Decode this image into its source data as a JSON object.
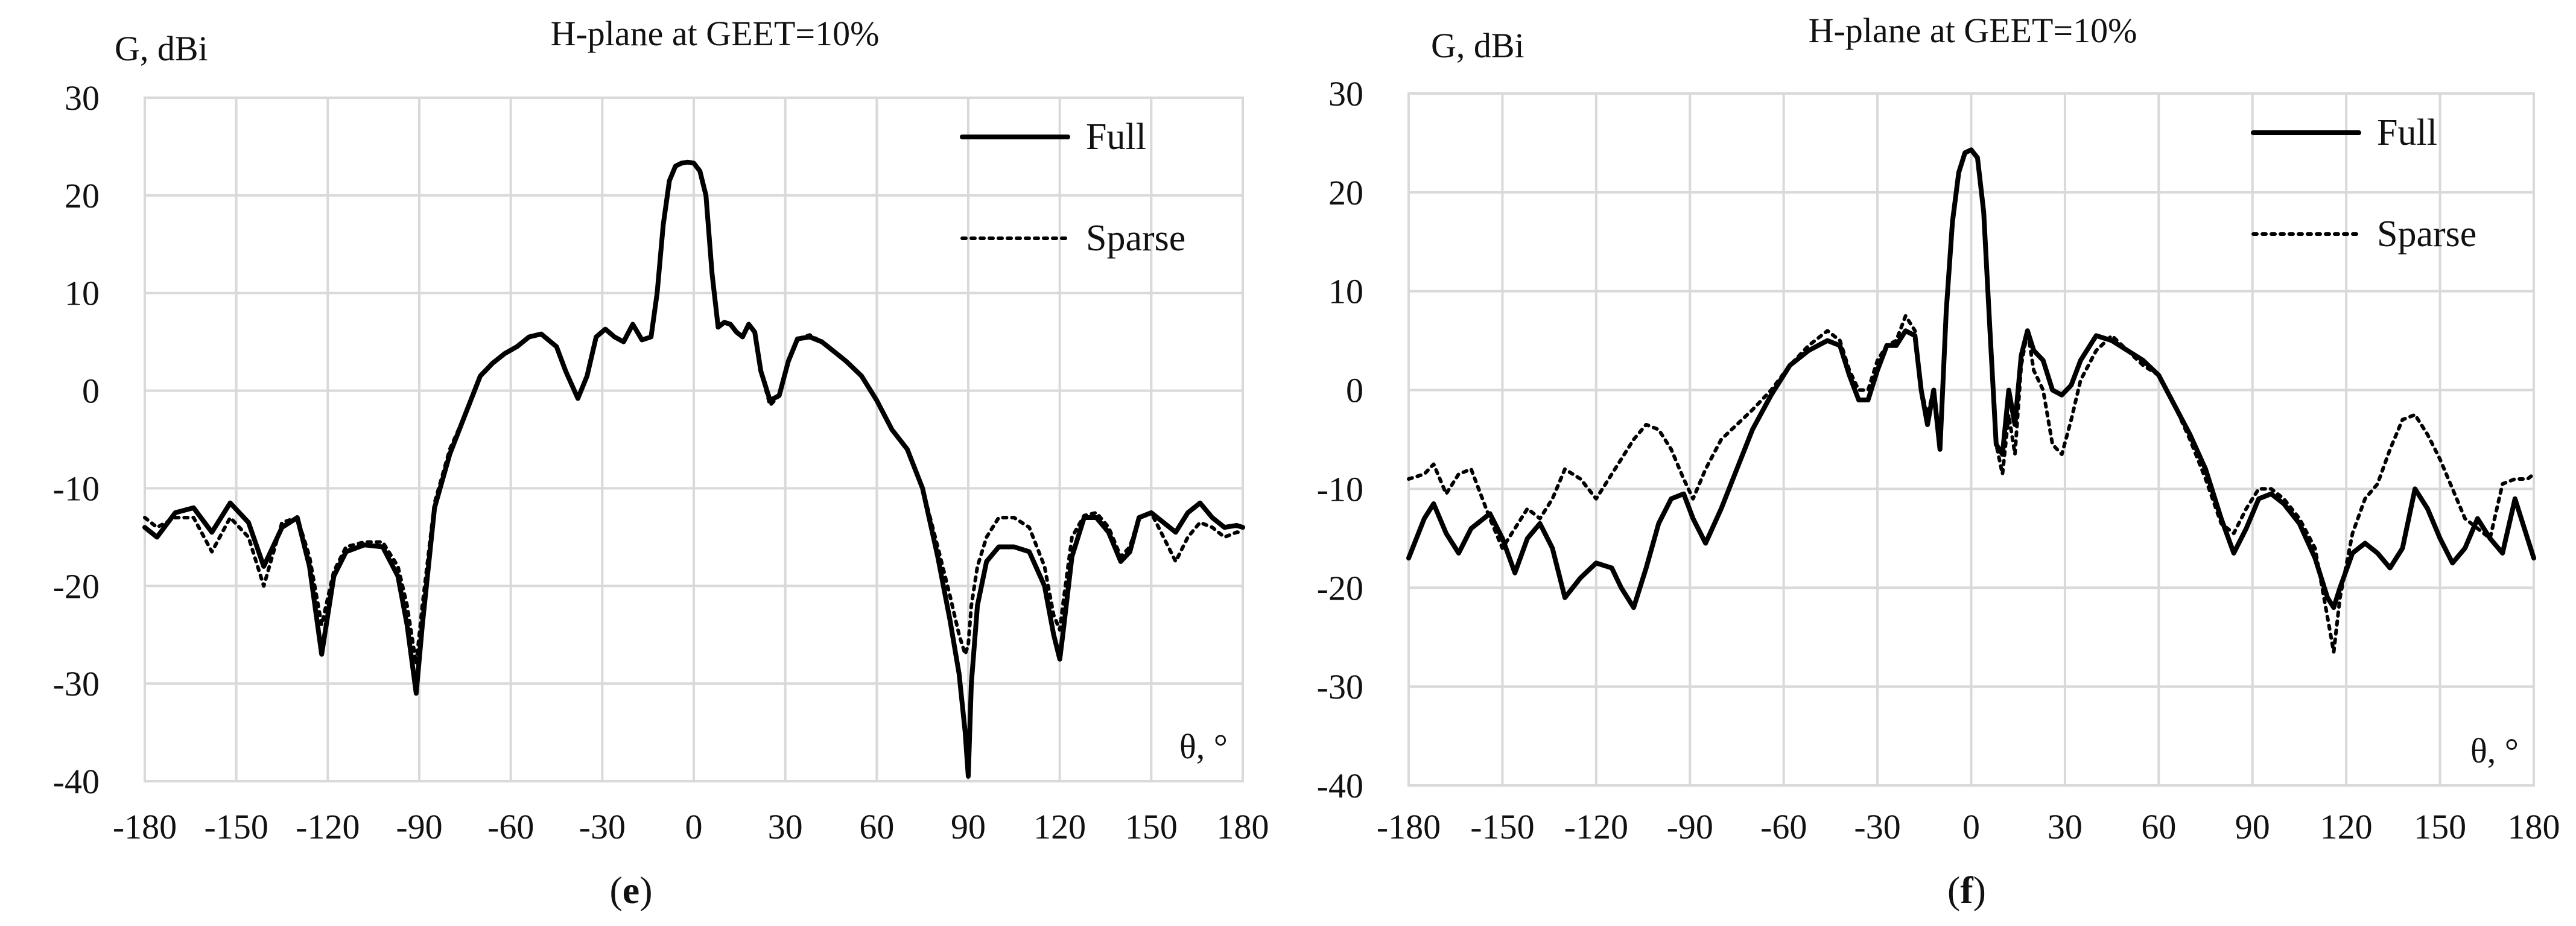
{
  "chart_data": [
    {
      "type": "line",
      "panel": "(e)",
      "caption_letter": "e",
      "title": "H-plane at GEET=10%",
      "ylabel": "G, dBi",
      "xlabel": "θ, °",
      "xlim": [
        -180,
        180
      ],
      "ylim": [
        -40,
        30
      ],
      "xticks": [
        "-180",
        "-150",
        "-120",
        "-90",
        "-60",
        "-30",
        "0",
        "30",
        "60",
        "90",
        "120",
        "150",
        "180"
      ],
      "yticks": [
        "30",
        "20",
        "10",
        "0",
        "-10",
        "-20",
        "-30",
        "-40"
      ],
      "grid": true,
      "legend_position": "top-right",
      "series": [
        {
          "name": "Full",
          "style": "solid",
          "x": [
            -180,
            -176,
            -170,
            -164,
            -158,
            -152,
            -146,
            -141,
            -135,
            -130,
            -126,
            -122,
            -118,
            -114,
            -108,
            -102,
            -97,
            -94,
            -91,
            -89,
            -85,
            -80,
            -75,
            -70,
            -66,
            -62,
            -58,
            -54,
            -50,
            -45,
            -42,
            -38,
            -35,
            -32,
            -29,
            -26,
            -23,
            -20,
            -17,
            -14,
            -12,
            -10,
            -8,
            -6,
            -4,
            -2,
            0,
            2,
            4,
            6,
            8,
            10,
            12,
            14,
            16,
            18,
            20,
            22,
            25,
            28,
            31,
            34,
            38,
            42,
            46,
            50,
            55,
            60,
            65,
            70,
            75,
            80,
            84,
            87,
            89,
            90,
            91,
            93,
            96,
            100,
            105,
            110,
            115,
            118,
            120,
            121,
            124,
            128,
            132,
            136,
            140,
            143,
            146,
            150,
            154,
            158,
            162,
            166,
            170,
            174,
            178,
            180
          ],
          "y": [
            -14,
            -15,
            -12.5,
            -12,
            -14.5,
            -11.5,
            -13.5,
            -18,
            -14,
            -13,
            -18,
            -27,
            -19,
            -16.5,
            -15.8,
            -16,
            -19,
            -24,
            -31,
            -24,
            -12,
            -6.5,
            -2.5,
            1.5,
            2.8,
            3.8,
            4.5,
            5.5,
            5.8,
            4.5,
            2,
            -0.8,
            1.5,
            5.5,
            6.3,
            5.5,
            5,
            6.8,
            5.2,
            5.5,
            10,
            17,
            21.5,
            23,
            23.3,
            23.4,
            23.3,
            22.5,
            20,
            12,
            6.5,
            7,
            6.8,
            6,
            5.5,
            6.8,
            6,
            2,
            -1,
            -0.5,
            3,
            5.3,
            5.5,
            5,
            4,
            3,
            1.5,
            -1,
            -4,
            -6,
            -10,
            -17,
            -23.5,
            -29,
            -35,
            -39.5,
            -30,
            -22,
            -17.5,
            -16,
            -16,
            -16.5,
            -20,
            -25,
            -27.5,
            -25,
            -17,
            -13,
            -13,
            -14.5,
            -17.5,
            -16.5,
            -13,
            -12.5,
            -13.5,
            -14.5,
            -12.5,
            -11.5,
            -13,
            -14,
            -13.8,
            -14
          ]
        },
        {
          "name": "Sparse",
          "style": "dotted",
          "x": [
            -180,
            -176,
            -170,
            -164,
            -158,
            -152,
            -146,
            -141,
            -135,
            -130,
            -126,
            -122,
            -118,
            -114,
            -108,
            -102,
            -97,
            -94,
            -91,
            -89,
            -85,
            -80,
            -75,
            -70,
            -66,
            -62,
            -58,
            -54,
            -50,
            -45,
            -42,
            -38,
            -35,
            -32,
            -29,
            -26,
            -23,
            -20,
            -17,
            -14,
            -12,
            -10,
            -8,
            -6,
            -4,
            -2,
            0,
            2,
            4,
            6,
            8,
            10,
            12,
            14,
            16,
            18,
            20,
            22,
            25,
            28,
            31,
            34,
            38,
            42,
            46,
            50,
            55,
            60,
            65,
            70,
            75,
            80,
            84,
            87,
            89,
            90,
            91,
            93,
            96,
            100,
            105,
            110,
            115,
            118,
            120,
            121,
            124,
            128,
            132,
            136,
            140,
            143,
            146,
            150,
            154,
            158,
            162,
            166,
            170,
            174,
            178,
            180
          ],
          "y": [
            -13,
            -14,
            -13,
            -13,
            -16.5,
            -13,
            -15,
            -20,
            -13.5,
            -13,
            -17,
            -24,
            -18.5,
            -16,
            -15.5,
            -15.5,
            -18,
            -22,
            -28,
            -22,
            -11.5,
            -6,
            -2.5,
            1.5,
            2.8,
            3.8,
            4.5,
            5.5,
            5.8,
            4.5,
            2,
            -0.8,
            1.5,
            5.5,
            6.3,
            5.5,
            5,
            6.8,
            5.2,
            5.5,
            10,
            17,
            21.5,
            23,
            23.3,
            23.4,
            23.3,
            22.5,
            20,
            12,
            6.5,
            7,
            6.8,
            6,
            5.5,
            6.8,
            6,
            2,
            -1.5,
            -0.5,
            3,
            5.3,
            5.7,
            5,
            4,
            3,
            1.5,
            -1,
            -4,
            -6,
            -10,
            -16,
            -21,
            -25,
            -27,
            -26,
            -22,
            -18,
            -15,
            -13,
            -13,
            -14,
            -18,
            -23,
            -24.5,
            -22,
            -15,
            -12.8,
            -12.5,
            -14,
            -17,
            -16,
            -13,
            -12.5,
            -15,
            -17.5,
            -15,
            -13.5,
            -14,
            -15,
            -14.5,
            -14.5
          ]
        }
      ]
    },
    {
      "type": "line",
      "panel": "(f)",
      "caption_letter": "f",
      "title": "H-plane at GEET=10%",
      "ylabel": "G, dBi",
      "xlabel": "θ, °",
      "xlim": [
        -180,
        180
      ],
      "ylim": [
        -40,
        30
      ],
      "xticks": [
        "-180",
        "-150",
        "-120",
        "-90",
        "-60",
        "-30",
        "0",
        "30",
        "60",
        "90",
        "120",
        "150",
        "180"
      ],
      "yticks": [
        "30",
        "20",
        "10",
        "0",
        "-10",
        "-20",
        "-30",
        "-40"
      ],
      "grid": true,
      "legend_position": "top-right",
      "series": [
        {
          "name": "Full",
          "style": "solid",
          "x": [
            -180,
            -175,
            -172,
            -168,
            -164,
            -160,
            -154,
            -150,
            -146,
            -142,
            -138,
            -134,
            -130,
            -125,
            -120,
            -115,
            -112,
            -108,
            -104,
            -100,
            -96,
            -92,
            -89,
            -85,
            -80,
            -75,
            -70,
            -64,
            -58,
            -52,
            -46,
            -42,
            -39,
            -36,
            -33,
            -30,
            -27,
            -24,
            -21,
            -18,
            -16,
            -14,
            -12,
            -10,
            -8,
            -6,
            -4,
            -2,
            0,
            2,
            4,
            6,
            8,
            10,
            12,
            14,
            16,
            18,
            20,
            23,
            26,
            29,
            32,
            35,
            40,
            45,
            50,
            55,
            60,
            65,
            70,
            75,
            80,
            84,
            88,
            92,
            96,
            100,
            105,
            110,
            114,
            116,
            118,
            122,
            126,
            130,
            134,
            138,
            142,
            146,
            150,
            154,
            158,
            162,
            166,
            170,
            174,
            178,
            180
          ],
          "y": [
            -17,
            -13,
            -11.5,
            -14.5,
            -16.5,
            -14,
            -12.5,
            -15,
            -18.5,
            -15,
            -13.5,
            -16,
            -21,
            -19,
            -17.5,
            -18,
            -20,
            -22,
            -18,
            -13.5,
            -11,
            -10.5,
            -13,
            -15.5,
            -12,
            -8,
            -4,
            -0.5,
            2.5,
            4,
            5,
            4.5,
            1.5,
            -1,
            -1,
            2,
            4.5,
            4.5,
            6,
            5.5,
            0,
            -3.5,
            0,
            -6,
            8,
            17,
            22,
            24,
            24.3,
            23.5,
            18,
            6,
            -5.5,
            -6.5,
            0,
            -3.5,
            3.5,
            6,
            4,
            3,
            0,
            -0.5,
            0.5,
            3,
            5.5,
            5,
            4,
            3,
            1.5,
            -1.5,
            -4.5,
            -8,
            -13,
            -16.5,
            -14,
            -11,
            -10.5,
            -11.5,
            -13.5,
            -17,
            -21,
            -22,
            -20,
            -16.5,
            -15.5,
            -16.5,
            -18,
            -16,
            -10,
            -12,
            -15,
            -17.5,
            -16,
            -13,
            -15,
            -16.5,
            -11,
            -15,
            -17
          ]
        },
        {
          "name": "Sparse",
          "style": "dotted",
          "x": [
            -180,
            -175,
            -172,
            -168,
            -164,
            -160,
            -154,
            -150,
            -146,
            -142,
            -138,
            -134,
            -130,
            -125,
            -120,
            -115,
            -112,
            -108,
            -104,
            -100,
            -96,
            -92,
            -89,
            -85,
            -80,
            -75,
            -70,
            -64,
            -58,
            -52,
            -46,
            -42,
            -39,
            -36,
            -33,
            -30,
            -27,
            -24,
            -21,
            -18,
            -16,
            -14,
            -12,
            -10,
            -8,
            -6,
            -4,
            -2,
            0,
            2,
            4,
            6,
            8,
            10,
            12,
            14,
            16,
            18,
            20,
            23,
            26,
            29,
            32,
            35,
            40,
            45,
            50,
            55,
            60,
            65,
            70,
            75,
            80,
            84,
            88,
            92,
            96,
            100,
            105,
            110,
            114,
            116,
            118,
            122,
            126,
            130,
            134,
            138,
            142,
            146,
            150,
            154,
            158,
            162,
            166,
            170,
            174,
            178,
            180
          ],
          "y": [
            -9,
            -8.5,
            -7.5,
            -10.5,
            -8.5,
            -8,
            -13,
            -16,
            -14,
            -12,
            -13,
            -11,
            -8,
            -9,
            -11,
            -8.5,
            -7,
            -5,
            -3.5,
            -4,
            -6,
            -9,
            -11,
            -8,
            -5,
            -3.5,
            -2,
            0,
            2.5,
            4.5,
            6,
            5,
            2,
            0,
            0,
            3,
            4.5,
            5,
            7.5,
            6,
            0,
            -2.5,
            0,
            -5,
            8,
            17,
            22,
            24,
            24.3,
            23.5,
            18,
            6,
            -5.5,
            -8.5,
            -2.5,
            -6.5,
            2.5,
            6,
            2,
            0,
            -5.5,
            -6.5,
            -3,
            1,
            4,
            5.5,
            4,
            2.5,
            1.5,
            -1.5,
            -5,
            -9,
            -13.5,
            -14.5,
            -12,
            -10,
            -10,
            -11,
            -13,
            -16,
            -23,
            -26.5,
            -21,
            -14.5,
            -11,
            -9.5,
            -6,
            -3,
            -2.5,
            -4.5,
            -7,
            -10,
            -13,
            -14,
            -15,
            -9.5,
            -9,
            -9,
            -8.5
          ]
        }
      ]
    }
  ]
}
